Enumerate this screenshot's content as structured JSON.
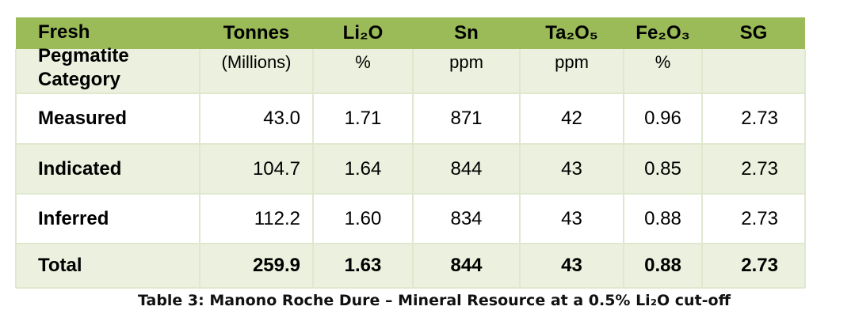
{
  "table": {
    "first_header": "Fresh Pegmatite Category",
    "columns": [
      {
        "name": "Tonnes",
        "unit": "(Millions)"
      },
      {
        "name": "Li₂O",
        "unit": "%"
      },
      {
        "name": "Sn",
        "unit": "ppm"
      },
      {
        "name": "Ta₂O₅",
        "unit": "ppm"
      },
      {
        "name": "Fe₂O₃",
        "unit": "%"
      },
      {
        "name": "SG",
        "unit": ""
      }
    ],
    "rows": [
      [
        "Measured",
        "43.0",
        "1.71",
        "871",
        "42",
        "0.96",
        "2.73"
      ],
      [
        "Indicated",
        "104.7",
        "1.64",
        "844",
        "43",
        "0.85",
        "2.73"
      ],
      [
        "Inferred",
        "112.2",
        "1.60",
        "834",
        "43",
        "0.88",
        "2.73"
      ],
      [
        "Total",
        "259.9",
        "1.63",
        "844",
        "43",
        "0.88",
        "2.73"
      ]
    ],
    "caption": "Table 3: Manono Roche Dure – Mineral Resource at a 0.5% Li₂O cut-off"
  }
}
